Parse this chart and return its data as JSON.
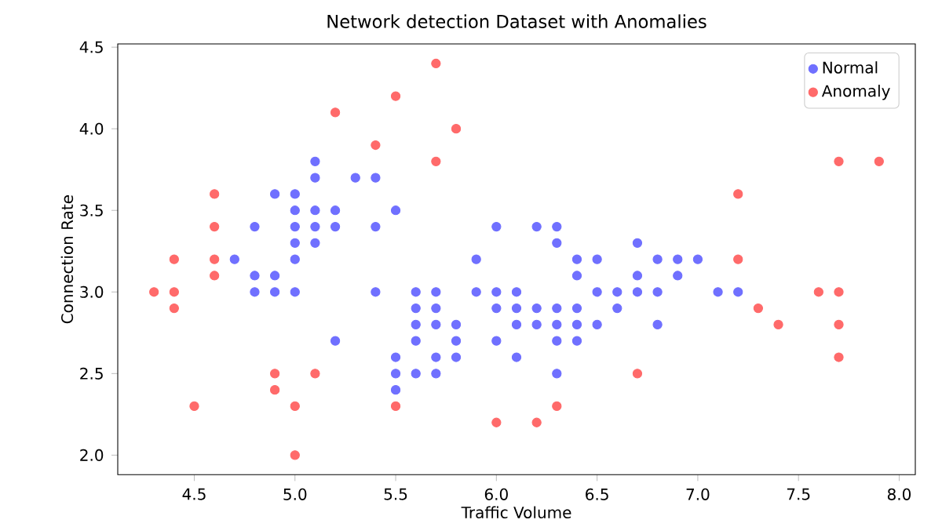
{
  "chart_data": {
    "type": "scatter",
    "title": "Network detection Dataset with Anomalies",
    "xlabel": "Traffic Volume",
    "ylabel": "Connection Rate",
    "xlim": [
      4.12,
      8.08
    ],
    "ylim": [
      1.88,
      4.52
    ],
    "xticks": [
      4.5,
      {
        "value": 5,
        "label": "5.0"
      },
      5.5,
      {
        "value": 6,
        "label": "6.0"
      },
      6.5,
      {
        "value": 7,
        "label": "7.0"
      },
      7.5,
      {
        "value": 8,
        "label": "8.0"
      }
    ],
    "yticks": [
      {
        "value": 2,
        "label": "2.0"
      },
      2.5,
      {
        "value": 3,
        "label": "3.0"
      },
      3.5,
      {
        "value": 4,
        "label": "4.0"
      },
      4.5
    ],
    "legend": "top right",
    "marker": "circle",
    "grid": false,
    "series": [
      {
        "name": "Normal",
        "color": "#7070ff",
        "x": [
          5.1,
          5.1,
          5.3,
          5.4,
          4.9,
          5.0,
          5.0,
          5.1,
          5.2,
          5.5,
          4.8,
          5.0,
          5.1,
          5.2,
          5.4,
          5.0,
          5.1,
          4.7,
          5.0,
          4.8,
          4.9,
          4.8,
          4.9,
          5.0,
          5.4,
          5.6,
          5.7,
          5.6,
          5.7,
          5.6,
          5.7,
          5.2,
          5.6,
          5.5,
          5.7,
          5.5,
          5.6,
          5.7,
          5.5,
          6.0,
          6.2,
          6.3,
          6.3,
          6.7,
          5.9,
          6.4,
          6.5,
          6.8,
          6.9,
          7.0,
          6.4,
          6.7,
          6.9,
          5.9,
          6.0,
          6.1,
          6.5,
          6.6,
          6.7,
          6.8,
          7.1,
          7.2,
          6.0,
          6.1,
          6.2,
          6.3,
          6.4,
          6.6,
          5.8,
          6.1,
          6.2,
          6.3,
          6.4,
          6.5,
          6.8,
          5.8,
          6.0,
          6.3,
          6.4,
          5.8,
          6.1,
          6.3
        ],
        "values": [
          3.8,
          3.7,
          3.7,
          3.7,
          3.6,
          3.6,
          3.5,
          3.5,
          3.5,
          3.5,
          3.4,
          3.4,
          3.4,
          3.4,
          3.4,
          3.3,
          3.3,
          3.2,
          3.2,
          3.1,
          3.1,
          3.0,
          3.0,
          3.0,
          3.0,
          3.0,
          3.0,
          2.9,
          2.9,
          2.8,
          2.8,
          2.7,
          2.7,
          2.6,
          2.6,
          2.5,
          2.5,
          2.5,
          2.4,
          3.4,
          3.4,
          3.4,
          3.3,
          3.3,
          3.2,
          3.2,
          3.2,
          3.2,
          3.2,
          3.2,
          3.1,
          3.1,
          3.1,
          3.0,
          3.0,
          3.0,
          3.0,
          3.0,
          3.0,
          3.0,
          3.0,
          3.0,
          2.9,
          2.9,
          2.9,
          2.9,
          2.9,
          2.9,
          2.8,
          2.8,
          2.8,
          2.8,
          2.8,
          2.8,
          2.8,
          2.7,
          2.7,
          2.7,
          2.7,
          2.6,
          2.6,
          2.5
        ]
      },
      {
        "name": "Anomaly",
        "color": "#ff6a6a",
        "x": [
          4.3,
          4.4,
          4.4,
          4.4,
          4.5,
          4.6,
          4.6,
          4.6,
          4.6,
          4.9,
          4.9,
          5.0,
          5.0,
          5.1,
          5.2,
          5.4,
          5.5,
          5.5,
          5.7,
          5.7,
          5.8,
          6.0,
          6.2,
          6.3,
          6.7,
          7.2,
          7.2,
          7.3,
          7.4,
          7.6,
          7.7,
          7.7,
          7.7,
          7.7,
          7.9
        ],
        "values": [
          3.0,
          3.0,
          2.9,
          3.2,
          2.3,
          3.6,
          3.4,
          3.2,
          3.1,
          2.5,
          2.4,
          2.3,
          2.0,
          2.5,
          4.1,
          3.9,
          4.2,
          2.3,
          4.4,
          3.8,
          4.0,
          2.2,
          2.2,
          2.3,
          2.5,
          3.6,
          3.2,
          2.9,
          2.8,
          3.0,
          3.8,
          3.0,
          2.8,
          2.6,
          3.8
        ]
      }
    ]
  }
}
